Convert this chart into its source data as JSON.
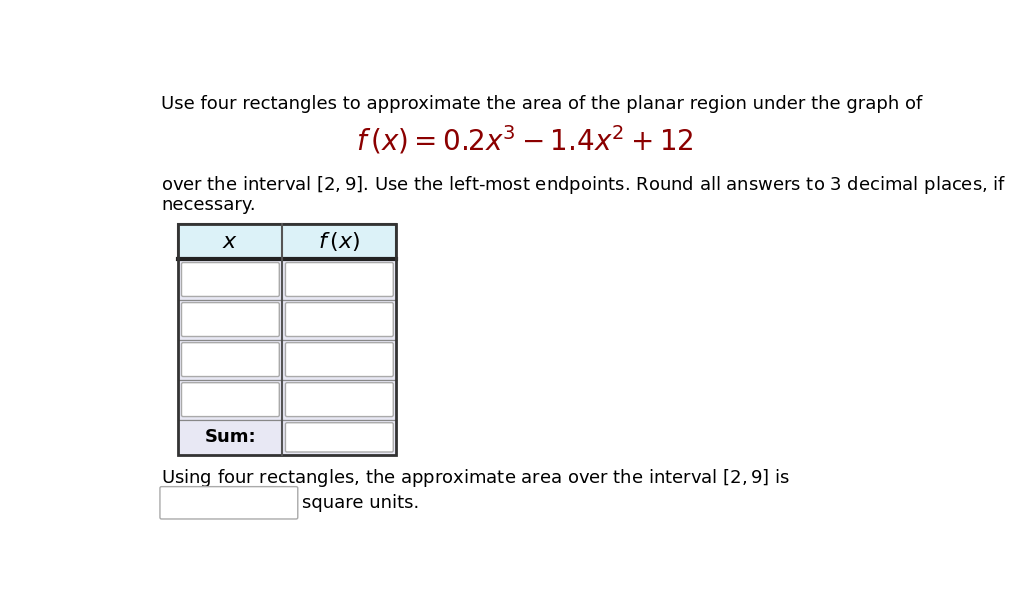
{
  "title_line1": "Use four rectangles to approximate the area of the planar region under the graph of",
  "col1_header": "$x$",
  "col2_header": "$f\\,(x)$",
  "sum_label": "Sum:",
  "bottom_text_before": "Using four rectangles, the approximate area over the interval $[2, 9]$ is",
  "bottom_text_after": "square units.",
  "n_rows": 4,
  "header_bg": "#dcf2f8",
  "row_bg": "#e8e8f4",
  "sum_bg": "#e8e8f4",
  "cell_bg": "#ffffff",
  "text_color": "#000000",
  "formula_color": "#8B0000",
  "font_size_body": 13,
  "font_size_formula": 18,
  "font_size_header": 14
}
